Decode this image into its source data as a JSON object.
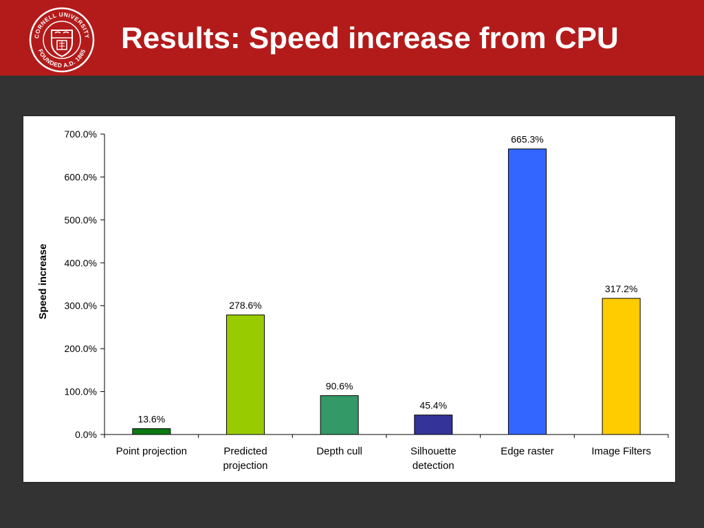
{
  "header": {
    "title": "Results: Speed increase from CPU",
    "logo_name": "Cornell University seal",
    "logo_text_top": "CORNELL UNIVERSITY",
    "logo_text_bottom": "FOUNDED A.D. 1865",
    "background": "#b31b1b"
  },
  "chart_data": {
    "type": "bar",
    "categories": [
      [
        "Point projection"
      ],
      [
        "Predicted",
        "projection"
      ],
      [
        "Depth cull"
      ],
      [
        "Silhouette",
        "detection"
      ],
      [
        "Edge raster"
      ],
      [
        "Image Filters"
      ]
    ],
    "values": [
      13.6,
      278.6,
      90.6,
      45.4,
      665.3,
      317.2
    ],
    "data_labels": [
      "13.6%",
      "278.6%",
      "90.6%",
      "45.4%",
      "665.3%",
      "317.2%"
    ],
    "colors": [
      "#0b7a12",
      "#99cc00",
      "#339966",
      "#333399",
      "#3366ff",
      "#ffcc00"
    ],
    "ylabel": "Speed increase",
    "ylim": [
      0,
      700
    ],
    "yticks": [
      0,
      100,
      200,
      300,
      400,
      500,
      600,
      700
    ],
    "ytick_labels": [
      "0.0%",
      "100.0%",
      "200.0%",
      "300.0%",
      "400.0%",
      "500.0%",
      "600.0%",
      "700.0%"
    ],
    "grid": false,
    "legend": "none"
  }
}
